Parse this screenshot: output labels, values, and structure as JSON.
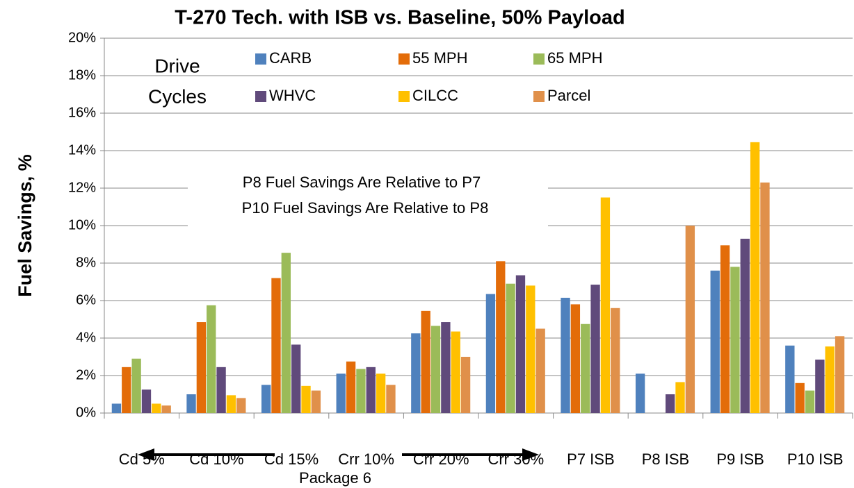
{
  "chart_data": {
    "type": "bar",
    "title": "T-270 Tech. with ISB vs. Baseline, 50% Payload",
    "y_label": "Fuel Savings, %",
    "categories": [
      "Cd 5%",
      "Cd 10%",
      "Cd 15%",
      "Crr 10%",
      "Crr 20%",
      "Crr 30%",
      "P7 ISB",
      "P8 ISB",
      "P9 ISB",
      "P10 ISB"
    ],
    "series": [
      {
        "name": "CARB",
        "color": "#4f81bd",
        "values": [
          0.5,
          1.0,
          1.5,
          2.1,
          4.25,
          6.35,
          6.15,
          2.1,
          7.6,
          3.6
        ]
      },
      {
        "name": "55 MPH",
        "color": "#e36c09",
        "values": [
          2.45,
          4.85,
          7.2,
          2.75,
          5.45,
          8.1,
          5.8,
          0,
          8.95,
          1.6
        ]
      },
      {
        "name": "65 MPH",
        "color": "#9bbb59",
        "values": [
          2.9,
          5.75,
          8.55,
          2.35,
          4.65,
          6.9,
          4.75,
          0,
          7.8,
          1.2
        ]
      },
      {
        "name": "WHVC",
        "color": "#604a7b",
        "values": [
          1.25,
          2.45,
          3.65,
          2.45,
          4.85,
          7.35,
          6.85,
          1.0,
          9.3,
          2.85
        ]
      },
      {
        "name": "CILCC",
        "color": "#ffc000",
        "values": [
          0.5,
          0.95,
          1.45,
          2.1,
          4.35,
          6.8,
          11.5,
          1.65,
          14.45,
          3.55
        ]
      },
      {
        "name": "Parcel",
        "color": "#e0904a",
        "values": [
          0.4,
          0.8,
          1.2,
          1.5,
          3.0,
          4.5,
          5.6,
          10.0,
          12.3,
          4.1
        ]
      }
    ],
    "ylim": [
      0,
      20
    ],
    "yticks": [
      {
        "value": 0,
        "label": "0%"
      },
      {
        "value": 2,
        "label": "2%"
      },
      {
        "value": 4,
        "label": "4%"
      },
      {
        "value": 6,
        "label": "6%"
      },
      {
        "value": 8,
        "label": "8%"
      },
      {
        "value": 10,
        "label": "10%"
      },
      {
        "value": 12,
        "label": "12%"
      },
      {
        "value": 14,
        "label": "14%"
      },
      {
        "value": 16,
        "label": "16%"
      },
      {
        "value": 18,
        "label": "18%"
      },
      {
        "value": 20,
        "label": "20%"
      }
    ],
    "grid": true,
    "legend_title": [
      "Drive",
      "Cycles"
    ],
    "annotations": [
      "P8 Fuel Savings Are Relative to P7",
      "P10 Fuel Savings Are Relative to P8"
    ],
    "group_label": "Package 6"
  }
}
